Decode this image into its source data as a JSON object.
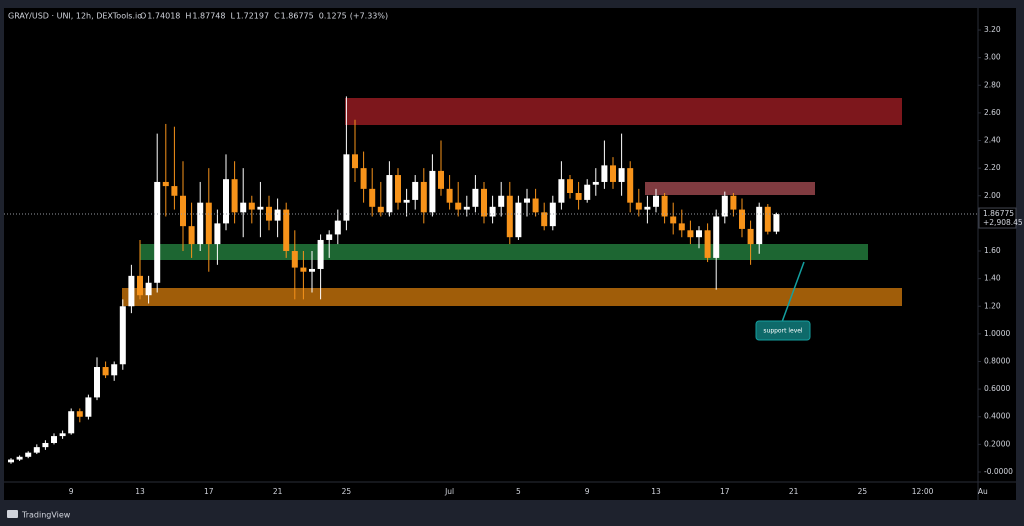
{
  "chart_data": {
    "type": "candlestick",
    "symbol": "GRAY/USD · UNI, 12h, DEXTools.io",
    "ohlc_labels": [
      "O",
      "H",
      "L",
      "C"
    ],
    "change": "0.1275",
    "change_pct": "(+7.33%)",
    "last_price_change": "+2,908.45",
    "annotation": "support level",
    "brand": "TradingView",
    "up_color": "#ffffff",
    "down_color": "#f7931a",
    "ylim": [
      -0.058,
      3.345
    ],
    "yticks": [
      {
        "value": 3.2,
        "label": "3.20"
      },
      {
        "value": 3.0,
        "label": "3.00"
      },
      {
        "value": 2.8,
        "label": "2.80"
      },
      {
        "value": 2.6,
        "label": "2.60"
      },
      {
        "value": 2.4,
        "label": "2.40"
      },
      {
        "value": 2.2,
        "label": "2.20"
      },
      {
        "value": 2.0,
        "label": "2.00"
      },
      {
        "value": 1.8,
        "label": "1.80"
      },
      {
        "value": 1.6,
        "label": "1.60"
      },
      {
        "value": 1.4,
        "label": "1.40"
      },
      {
        "value": 1.2,
        "label": "1.20"
      },
      {
        "value": 1.0,
        "label": "1.0000"
      },
      {
        "value": 0.8,
        "label": "0.8000"
      },
      {
        "value": 0.6,
        "label": "0.6000"
      },
      {
        "value": 0.4,
        "label": "0.4000"
      },
      {
        "value": 0.2,
        "label": "0.2000"
      },
      {
        "value": 0,
        "label": "-0.0000"
      }
    ],
    "grid": false,
    "categories": [
      null,
      null,
      null,
      null,
      null,
      null,
      null,
      "9",
      null,
      null,
      null,
      null,
      null,
      null,
      null,
      "13",
      null,
      null,
      null,
      null,
      null,
      null,
      null,
      "17",
      null,
      null,
      null,
      null,
      null,
      null,
      null,
      "21",
      null,
      null,
      null,
      null,
      null,
      null,
      null,
      "25",
      null,
      null,
      null,
      null,
      null,
      null,
      null,
      null,
      null,
      null,
      null,
      "Jul",
      null,
      null,
      null,
      null,
      null,
      null,
      null,
      "5",
      null,
      null,
      null,
      null,
      null,
      null,
      null,
      "9",
      null,
      null,
      null,
      null,
      null,
      null,
      null,
      "13",
      null,
      null,
      null,
      null,
      null,
      null,
      null,
      "17",
      null,
      null,
      null,
      null,
      null,
      null,
      null,
      "21",
      null,
      null,
      null,
      null,
      null,
      null,
      null,
      "25",
      null,
      null,
      null,
      null,
      null,
      null,
      "12:00",
      null,
      null,
      null,
      null,
      null,
      null,
      "Au"
    ],
    "open": [
      0.07,
      0.09,
      0.11,
      0.14,
      0.18,
      0.21,
      0.26,
      0.28,
      0.44,
      0.4,
      0.54,
      0.76,
      0.7,
      0.78,
      1.2,
      1.42,
      1.28,
      1.37,
      2.1,
      2.07,
      2.0,
      1.78,
      1.65,
      1.95,
      1.65,
      1.8,
      2.12,
      1.88,
      1.95,
      1.9,
      1.92,
      1.82,
      1.9,
      1.6,
      1.48,
      1.45,
      1.47,
      1.68,
      1.72,
      1.82,
      2.3,
      2.2,
      2.05,
      1.92,
      1.88,
      2.15,
      1.95,
      1.97,
      2.1,
      1.88,
      2.18,
      2.05,
      1.95,
      1.9,
      1.92,
      2.05,
      1.85,
      1.92,
      2.0,
      1.7,
      1.95,
      1.98,
      1.88,
      1.78,
      1.95,
      2.12,
      2.02,
      1.97,
      2.08,
      2.1,
      2.22,
      2.1,
      2.2,
      1.95,
      1.9,
      1.92,
      2.0,
      1.85,
      1.8,
      1.75,
      1.7,
      1.75,
      1.55,
      1.85,
      2.0,
      1.9,
      1.76,
      1.65,
      1.92,
      1.74018,
      null,
      null,
      null,
      null,
      null,
      null,
      null,
      null,
      null,
      null,
      null,
      null,
      null,
      null,
      null,
      null,
      null,
      null,
      null,
      null,
      null,
      null,
      null,
      null
    ],
    "high": [
      0.1,
      0.12,
      0.15,
      0.2,
      0.23,
      0.28,
      0.3,
      0.46,
      0.46,
      0.56,
      0.83,
      0.8,
      0.8,
      1.25,
      1.5,
      1.68,
      1.42,
      2.45,
      2.52,
      2.5,
      2.25,
      1.95,
      2.1,
      2.2,
      1.9,
      2.3,
      2.25,
      2.2,
      2.0,
      2.1,
      2.0,
      1.98,
      1.95,
      1.75,
      1.6,
      1.6,
      1.72,
      1.75,
      1.9,
      2.72,
      2.55,
      2.32,
      2.2,
      2.1,
      2.25,
      2.2,
      2.05,
      2.15,
      2.2,
      2.3,
      2.4,
      2.15,
      2.1,
      2.0,
      2.15,
      2.1,
      2.0,
      2.1,
      2.1,
      2.0,
      2.05,
      2.05,
      1.95,
      2.0,
      2.25,
      2.15,
      2.1,
      2.12,
      2.2,
      2.4,
      2.28,
      2.45,
      2.25,
      2.05,
      2.0,
      2.05,
      2.02,
      1.95,
      1.9,
      1.82,
      1.78,
      1.8,
      1.9,
      2.03,
      2.02,
      1.98,
      1.82,
      1.95,
      1.94,
      1.87748,
      null,
      null,
      null,
      null,
      null,
      null,
      null,
      null,
      null,
      null,
      null,
      null,
      null,
      null,
      null,
      null,
      null,
      null,
      null,
      null,
      null,
      null,
      null,
      null
    ],
    "low": [
      0.06,
      0.08,
      0.1,
      0.13,
      0.16,
      0.2,
      0.24,
      0.27,
      0.36,
      0.38,
      0.52,
      0.68,
      0.66,
      0.74,
      1.15,
      1.25,
      1.22,
      1.3,
      1.85,
      1.9,
      1.6,
      1.55,
      1.6,
      1.45,
      1.5,
      1.75,
      1.8,
      1.7,
      1.8,
      1.7,
      1.75,
      1.7,
      1.55,
      1.25,
      1.25,
      1.3,
      1.25,
      1.55,
      1.65,
      1.75,
      2.1,
      1.95,
      1.85,
      1.85,
      1.85,
      1.9,
      1.85,
      1.9,
      1.8,
      1.85,
      2.0,
      1.9,
      1.85,
      1.85,
      1.88,
      1.8,
      1.8,
      1.85,
      1.65,
      1.68,
      1.85,
      1.85,
      1.75,
      1.75,
      1.9,
      1.98,
      1.9,
      1.95,
      2.0,
      2.05,
      2.05,
      2.0,
      1.88,
      1.85,
      1.8,
      1.88,
      1.8,
      1.72,
      1.7,
      1.65,
      1.62,
      1.52,
      1.32,
      1.8,
      1.85,
      1.7,
      1.5,
      1.58,
      1.72,
      1.72197,
      null,
      null,
      null,
      null,
      null,
      null,
      null,
      null,
      null,
      null,
      null,
      null,
      null,
      null,
      null,
      null,
      null,
      null,
      null,
      null,
      null,
      null,
      null,
      null
    ],
    "close": [
      0.09,
      0.11,
      0.14,
      0.18,
      0.21,
      0.26,
      0.28,
      0.44,
      0.4,
      0.54,
      0.76,
      0.7,
      0.78,
      1.2,
      1.42,
      1.28,
      1.37,
      2.1,
      2.07,
      2.0,
      1.78,
      1.65,
      1.95,
      1.65,
      1.8,
      2.12,
      1.88,
      1.95,
      1.9,
      1.92,
      1.82,
      1.9,
      1.6,
      1.48,
      1.45,
      1.47,
      1.68,
      1.72,
      1.82,
      2.3,
      2.2,
      2.05,
      1.92,
      1.88,
      2.15,
      1.95,
      1.97,
      2.1,
      1.88,
      2.18,
      2.05,
      1.95,
      1.9,
      1.92,
      2.05,
      1.85,
      1.92,
      2.0,
      1.7,
      1.95,
      1.98,
      1.88,
      1.78,
      1.95,
      2.12,
      2.02,
      1.97,
      2.08,
      2.1,
      2.22,
      2.1,
      2.2,
      1.95,
      1.9,
      1.92,
      2.0,
      1.85,
      1.8,
      1.75,
      1.7,
      1.75,
      1.55,
      1.85,
      2.0,
      1.9,
      1.76,
      1.65,
      1.92,
      1.74,
      1.86775,
      null,
      null,
      null,
      null,
      null,
      null,
      null,
      null,
      null,
      null,
      null,
      null,
      null,
      null,
      null,
      null,
      null,
      null,
      null,
      null,
      null,
      null,
      null,
      null
    ]
  }
}
